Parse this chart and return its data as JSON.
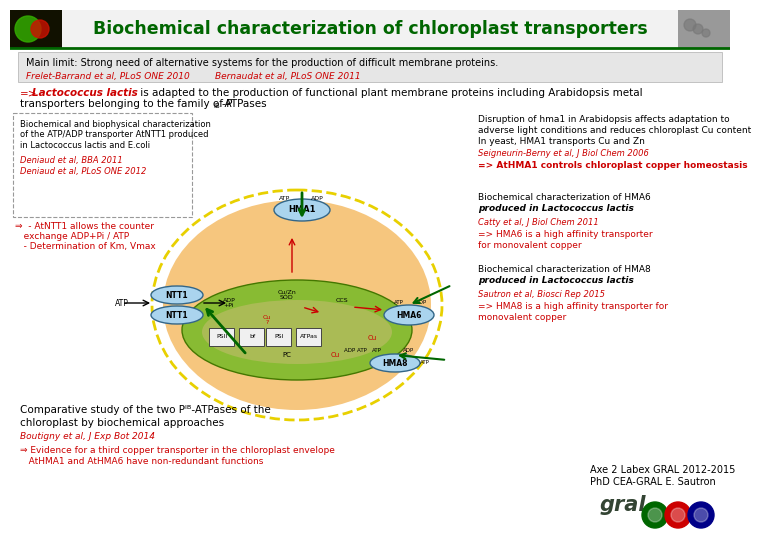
{
  "title": "Biochemical characterization of chloroplast transporters",
  "title_color": "#006600",
  "bg_color": "#ffffff",
  "main_limit_text": "Main limit: Strong need of alternative systems for the production of difficult membrane proteins.",
  "ref1": "Frelet-Barrand et al, PLoS ONE 2010",
  "ref2": "Bernaudat et al, PLoS ONE 2011",
  "ntt1_bio_text": "Biochemical and biophysical characterization\nof the ATP/ADP transporter AtNTT1 produced\nin Lactococcus lactis and E.coli",
  "ntt1_ref1": "Deniaud et al, BBA 2011",
  "ntt1_ref2": "Deniaud et al, PLoS ONE 2012",
  "ntt1_result1": "⇒  - AtNTT1 allows the counter",
  "ntt1_result2": "   exchange ADP+Pi / ATP",
  "ntt1_result3": "   - Determination of Km, Vmax",
  "disruption_line1": "Disruption of hma1 in Arabidopsis affects adaptation to",
  "disruption_line2": "adverse light conditions and reduces chloroplast Cu content",
  "disruption_line3": "In yeast, HMA1 transports Cu and Zn",
  "disruption_ref": "Seigneurin-Berny et al, J Biol Chem 2006",
  "hma1_result": "=> AtHMA1 controls chloroplast copper homeostasis",
  "hma6_bio_line1": "Biochemical characterization of HMA6",
  "hma6_bio_line2": "produced in Lactococcus lactis",
  "hma6_ref": "Catty et al, J Biol Chem 2011",
  "hma6_result1": "=> HMA6 is a high affinity transporter",
  "hma6_result2": "for monovalent copper",
  "hma8_bio_line1": "Biochemical characterization of HMA8",
  "hma8_bio_line2": "produced in Lactococcus lactis",
  "hma8_ref": "Sautron et al, Biosci Rep 2015",
  "hma8_result1": "=> HMA8 is a high affinity transporter for",
  "hma8_result2": "monovalent copper",
  "comparative_line1": "Comparative study of the two Pᴵᴮ-ATPases of the",
  "comparative_line2": "chloroplast by biochemical approaches",
  "comparative_ref": "Boutigny et al, J Exp Bot 2014",
  "evidence_line1": "⇒ Evidence for a third copper transporter in the chloroplast envelope",
  "evidence_line2": "   AtHMA1 and AtHMA6 have non-redundant functions",
  "axe_line1": "Axe 2 Labex GRAL 2012-2015",
  "axe_line2": "PhD CEA-GRAL E. Sautron",
  "red_color": "#cc0000",
  "dark_green": "#006600",
  "orange_bg": "#f5c070",
  "yellow_dashed": "#e8d000",
  "light_green_bg": "#88bb33",
  "thylakoid_inner": "#aabb55"
}
